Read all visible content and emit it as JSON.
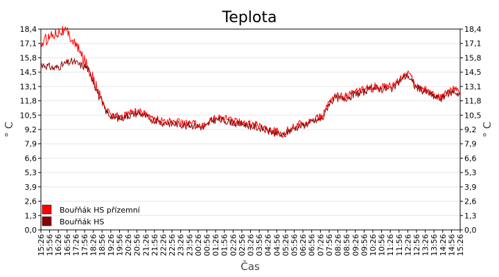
{
  "chart_data": {
    "type": "line",
    "title": "Teplota",
    "xlabel": "Čas",
    "ylabel": "° C",
    "ylim": [
      0,
      18.4
    ],
    "y_ticks": [
      "0,0",
      "1,3",
      "2,6",
      "3,9",
      "5,3",
      "6,6",
      "7,9",
      "9,2",
      "10,5",
      "11,8",
      "13,1",
      "14,5",
      "15,8",
      "17,1",
      "18,4"
    ],
    "x_ticks": [
      "15:26",
      "15:56",
      "16:26",
      "16:56",
      "17:26",
      "17:56",
      "18:26",
      "18:56",
      "19:26",
      "19:56",
      "20:26",
      "20:56",
      "21:26",
      "21:56",
      "22:26",
      "22:56",
      "23:26",
      "23:56",
      "00:26",
      "00:56",
      "01:26",
      "01:56",
      "02:26",
      "02:56",
      "03:26",
      "03:56",
      "04:26",
      "04:56",
      "05:26",
      "05:56",
      "06:26",
      "06:56",
      "07:26",
      "07:56",
      "08:26",
      "08:56",
      "09:26",
      "09:56",
      "10:26",
      "10:56",
      "11:26",
      "11:56",
      "12:26",
      "12:56",
      "13:26",
      "13:56",
      "14:26",
      "14:56",
      "15:26"
    ],
    "grid": true,
    "legend_position": "bottom-left",
    "series": [
      {
        "name": "Bouřňák HS přízemní",
        "color": "#ff0000",
        "values": [
          17.0,
          17.6,
          18.0,
          18.3,
          18.1,
          17.3,
          16.2,
          15.2,
          13.8,
          12.2,
          11.0,
          10.5,
          10.4,
          10.6,
          10.8,
          10.9,
          10.6,
          10.3,
          10.1,
          10.0,
          9.9,
          9.9,
          9.8,
          9.8,
          9.7,
          9.5,
          10.2,
          10.3,
          10.2,
          10.1,
          9.9,
          9.9,
          9.7,
          9.6,
          9.4,
          9.2,
          9.0,
          8.8,
          9.3,
          9.6,
          9.8,
          10.0,
          10.2,
          10.4,
          11.8,
          12.3,
          12.2,
          12.4,
          12.6,
          12.8,
          13.0,
          13.2,
          13.1,
          13.1,
          13.3,
          14.0,
          14.5,
          13.4,
          13.0,
          12.8,
          12.4,
          12.2,
          12.6,
          12.9,
          12.6
        ]
      },
      {
        "name": "Bouřňák HS",
        "color": "#8b0000",
        "values": [
          15.2,
          15.0,
          14.8,
          15.0,
          15.3,
          15.4,
          15.1,
          14.9,
          13.7,
          12.0,
          10.8,
          10.3,
          10.2,
          10.4,
          10.6,
          10.7,
          10.4,
          10.1,
          9.9,
          9.8,
          9.7,
          9.7,
          9.6,
          9.6,
          9.5,
          9.3,
          10.0,
          10.1,
          10.0,
          9.9,
          9.7,
          9.7,
          9.5,
          9.4,
          9.2,
          9.0,
          8.8,
          8.6,
          9.1,
          9.4,
          9.6,
          9.8,
          10.0,
          10.2,
          11.6,
          12.1,
          12.0,
          12.2,
          12.4,
          12.6,
          12.8,
          13.0,
          12.9,
          12.9,
          13.1,
          13.8,
          14.2,
          13.2,
          12.8,
          12.6,
          12.2,
          12.0,
          12.4,
          12.7,
          12.4
        ]
      }
    ]
  }
}
